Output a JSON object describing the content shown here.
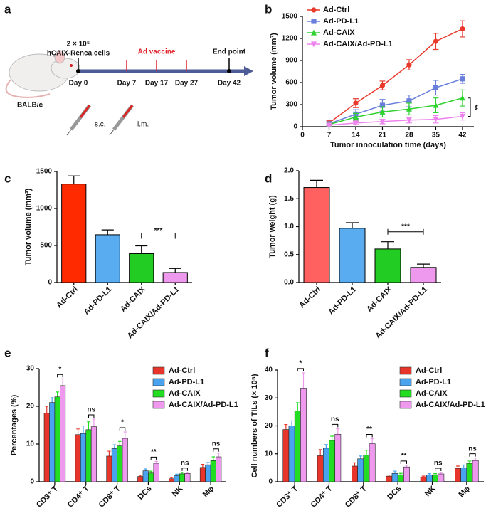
{
  "schematic": {
    "panel_label": "a",
    "cells_dose": "2 × 10⁵",
    "cells": "hCAIX-Renca cells",
    "vaccine": "Ad vaccine",
    "end": "End point",
    "days": [
      "Day 0",
      "Day 7",
      "Day 17",
      "Day 27",
      "Day 42"
    ],
    "mouse": "BALB/c",
    "routes": [
      "s.c.",
      "i.m."
    ]
  },
  "chart_data": [
    {
      "type": "line",
      "panel_label": "b",
      "x_label": "Tumor innoculation time (days)",
      "y_label": "Tumor volume (mm³)",
      "x": [
        7,
        14,
        21,
        28,
        35,
        42
      ],
      "xlim": [
        0,
        45
      ],
      "xticks": [
        0,
        7,
        14,
        21,
        28,
        35,
        42
      ],
      "ylim": [
        0,
        1500
      ],
      "yticks": [
        0,
        300,
        600,
        900,
        1200,
        1500
      ],
      "significance": "**",
      "series": [
        {
          "name": "Ad-Ctrl",
          "color": "#e8392b",
          "marker": "circle",
          "values": [
            50,
            320,
            560,
            840,
            1160,
            1330
          ],
          "errors": [
            30,
            60,
            60,
            70,
            110,
            110
          ]
        },
        {
          "name": "Ad-PD-L1",
          "color": "#6a7fdb",
          "marker": "square",
          "values": [
            40,
            170,
            290,
            350,
            530,
            650
          ],
          "errors": [
            20,
            60,
            80,
            80,
            100,
            60
          ]
        },
        {
          "name": "Ad-CAIX",
          "color": "#2fd12f",
          "marker": "triangle-up",
          "values": [
            30,
            130,
            200,
            240,
            290,
            390
          ],
          "errors": [
            20,
            50,
            70,
            80,
            100,
            110
          ]
        },
        {
          "name": "Ad-CAIX/Ad-PD-L1",
          "color": "#ee82ee",
          "marker": "triangle-down",
          "values": [
            20,
            50,
            70,
            90,
            100,
            140
          ],
          "errors": [
            10,
            20,
            30,
            40,
            50,
            50
          ]
        }
      ]
    },
    {
      "type": "bar",
      "panel_label": "c",
      "y_label": "Tumor volume (mm³)",
      "categories": [
        "Ad-Ctrl",
        "Ad-PD-L1",
        "Ad-CAIX",
        "Ad-CAIX/Ad-PD-L1"
      ],
      "values": [
        1330,
        645,
        390,
        135
      ],
      "errors": [
        110,
        65,
        105,
        55
      ],
      "colors": [
        "#ff2a00",
        "#5aacf0",
        "#22cc22",
        "#ee99ee"
      ],
      "ylim": [
        0,
        1500
      ],
      "yticks": [
        0,
        500,
        1000,
        1500
      ],
      "significance": "***"
    },
    {
      "type": "bar",
      "panel_label": "d",
      "y_label": "Tumor weight (g)",
      "categories": [
        "Ad-Ctrl",
        "Ad-PD-L1",
        "Ad-CAIX",
        "Ad-CAIX/Ad-PD-L1"
      ],
      "values": [
        1.7,
        0.97,
        0.6,
        0.27
      ],
      "errors": [
        0.13,
        0.1,
        0.13,
        0.06
      ],
      "colors": [
        "#ff6060",
        "#5aacf0",
        "#22cc22",
        "#ee99ee"
      ],
      "ylim": [
        0,
        2.0
      ],
      "yticks": [
        {
          "value": 0,
          "label": "0.0"
        },
        0.5,
        {
          "value": 1,
          "label": "1.0"
        },
        1.5,
        {
          "value": 2,
          "label": "2.0"
        }
      ],
      "significance": "***"
    },
    {
      "type": "grouped-bar",
      "panel_label": "e",
      "y_label": "Percentages (%)",
      "categories": [
        "CD3⁺ T",
        "CD4⁺ T",
        "CD8⁺ T",
        "DCs",
        "NK",
        "Mφ"
      ],
      "ylim": [
        0,
        30
      ],
      "yticks": [
        0,
        10,
        20,
        30
      ],
      "significance": [
        "*",
        "ns",
        "*",
        "**",
        "ns",
        "ns"
      ],
      "series": [
        {
          "name": "Ad-Ctrl",
          "color": "#e8352b",
          "values": [
            18.2,
            12.5,
            6.8,
            1.4,
            0.8,
            3.8
          ],
          "errors": [
            1.8,
            1.5,
            1.3,
            0.3,
            0.3,
            0.8
          ]
        },
        {
          "name": "Ad-PD-L1",
          "color": "#4aa3ee",
          "values": [
            21,
            12.8,
            8.8,
            2.9,
            1.6,
            4.5
          ],
          "errors": [
            1.3,
            2,
            1,
            0.5,
            0.4,
            0.6
          ]
        },
        {
          "name": "Ad-CAIX",
          "color": "#22dd22",
          "values": [
            22.5,
            13.8,
            9.5,
            2.3,
            2.1,
            5.6
          ],
          "errors": [
            1.3,
            2.1,
            1.2,
            0.5,
            0.4,
            1
          ]
        },
        {
          "name": "Ad-CAIX/Ad-PD-L1",
          "color": "#ee99ee",
          "values": [
            25.5,
            14.6,
            11.5,
            4.9,
            2.2,
            6.6
          ],
          "errors": [
            1.8,
            2,
            1.7,
            0.5,
            0.3,
            1
          ]
        }
      ]
    },
    {
      "type": "grouped-bar",
      "panel_label": "f",
      "y_label": "Cell numbers of TILs (× 10⁵)",
      "categories": [
        "CD3⁺ T",
        "CD4⁺ T",
        "CD8⁺ T",
        "DCs",
        "NK",
        "Mφ"
      ],
      "ylim": [
        0,
        40
      ],
      "yticks": [
        0,
        10,
        20,
        30,
        40
      ],
      "significance": [
        "*",
        "ns",
        "**",
        "**",
        "ns",
        "ns"
      ],
      "series": [
        {
          "name": "Ad-Ctrl",
          "color": "#e8352b",
          "values": [
            18.7,
            9.3,
            5.6,
            2,
            1.6,
            4.8
          ],
          "errors": [
            1.8,
            2.2,
            1.2,
            0.4,
            0.4,
            0.8
          ]
        },
        {
          "name": "Ad-PD-L1",
          "color": "#4aa3ee",
          "values": [
            20,
            12,
            8.2,
            3,
            2.4,
            5
          ],
          "errors": [
            1.8,
            1.3,
            1,
            0.8,
            0.5,
            1
          ]
        },
        {
          "name": "Ad-CAIX",
          "color": "#22dd22",
          "values": [
            25.3,
            14.8,
            9.5,
            2.5,
            2.5,
            6.6
          ],
          "errors": [
            3,
            1.5,
            1.8,
            0.5,
            0.4,
            0.8
          ]
        },
        {
          "name": "Ad-CAIX/Ad-PD-L1",
          "color": "#ee99ee",
          "values": [
            33.5,
            17,
            13.6,
            5.3,
            2.8,
            7.6
          ],
          "errors": [
            5.5,
            2,
            1.8,
            0.6,
            0.5,
            0.9
          ]
        }
      ]
    }
  ]
}
